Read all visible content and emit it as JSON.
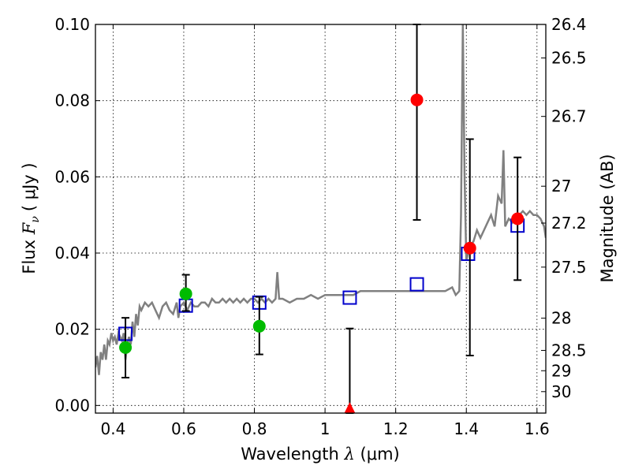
{
  "chart_data": {
    "type": "scatter",
    "xlabel_prefix": "Wavelength",
    "xlabel_symbol": "λ",
    "xlabel_unit": "(μm)",
    "ylabel_prefix": "Flux",
    "ylabel_symbol": "F",
    "ylabel_subscript": "ν",
    "ylabel_unit": "( μJy )",
    "y2label": "Magnitude (AB)",
    "xlim": [
      0.35,
      1.625
    ],
    "ylim": [
      -0.002,
      0.1
    ],
    "grid": true,
    "x_ticks": [
      {
        "value": 0.4,
        "label": "0.4"
      },
      {
        "value": 0.6,
        "label": "0.6"
      },
      {
        "value": 0.8,
        "label": "0.8"
      },
      {
        "value": 1.0,
        "label": "1"
      },
      {
        "value": 1.2,
        "label": "1.2"
      },
      {
        "value": 1.4,
        "label": "1.4"
      },
      {
        "value": 1.6,
        "label": "1.6"
      }
    ],
    "y_ticks": [
      {
        "value": 0.0,
        "label": "0.00"
      },
      {
        "value": 0.02,
        "label": "0.02"
      },
      {
        "value": 0.04,
        "label": "0.04"
      },
      {
        "value": 0.06,
        "label": "0.06"
      },
      {
        "value": 0.08,
        "label": "0.08"
      },
      {
        "value": 0.1,
        "label": "0.10"
      }
    ],
    "mag_ticks": [
      {
        "value": 26.4,
        "label": "26.4"
      },
      {
        "value": 26.5,
        "label": "26.5"
      },
      {
        "value": 26.7,
        "label": "26.7"
      },
      {
        "value": 27.0,
        "label": "27"
      },
      {
        "value": 27.2,
        "label": "27.2"
      },
      {
        "value": 27.5,
        "label": "27.5"
      },
      {
        "value": 28.0,
        "label": "28"
      },
      {
        "value": 28.5,
        "label": "28.5"
      },
      {
        "value": 29.0,
        "label": "29"
      },
      {
        "value": 30.0,
        "label": "30"
      }
    ],
    "series": [
      {
        "role": "template-spectrum",
        "kind": "line",
        "color": "#808080",
        "x": [
          0.35,
          0.355,
          0.36,
          0.365,
          0.37,
          0.375,
          0.38,
          0.385,
          0.39,
          0.395,
          0.4,
          0.405,
          0.41,
          0.415,
          0.42,
          0.425,
          0.43,
          0.435,
          0.44,
          0.445,
          0.45,
          0.455,
          0.46,
          0.465,
          0.47,
          0.475,
          0.48,
          0.49,
          0.5,
          0.51,
          0.52,
          0.53,
          0.54,
          0.55,
          0.56,
          0.57,
          0.58,
          0.585,
          0.59,
          0.6,
          0.61,
          0.62,
          0.63,
          0.64,
          0.65,
          0.66,
          0.67,
          0.68,
          0.69,
          0.7,
          0.71,
          0.72,
          0.73,
          0.74,
          0.75,
          0.76,
          0.77,
          0.78,
          0.79,
          0.8,
          0.81,
          0.82,
          0.83,
          0.84,
          0.85,
          0.86,
          0.865,
          0.87,
          0.875,
          0.88,
          0.9,
          0.92,
          0.94,
          0.96,
          0.98,
          1.0,
          1.02,
          1.04,
          1.06,
          1.08,
          1.1,
          1.12,
          1.14,
          1.16,
          1.18,
          1.2,
          1.22,
          1.24,
          1.26,
          1.28,
          1.3,
          1.32,
          1.34,
          1.36,
          1.37,
          1.38,
          1.385,
          1.39,
          1.395,
          1.4,
          1.405,
          1.41,
          1.42,
          1.43,
          1.44,
          1.45,
          1.46,
          1.47,
          1.48,
          1.49,
          1.5,
          1.505,
          1.51,
          1.52,
          1.53,
          1.54,
          1.55,
          1.56,
          1.57,
          1.58,
          1.59,
          1.6,
          1.61,
          1.62,
          1.625
        ],
        "y": [
          0.01,
          0.013,
          0.008,
          0.014,
          0.012,
          0.016,
          0.012,
          0.017,
          0.016,
          0.019,
          0.017,
          0.018,
          0.016,
          0.019,
          0.018,
          0.017,
          0.019,
          0.012,
          0.016,
          0.018,
          0.016,
          0.022,
          0.018,
          0.024,
          0.021,
          0.026,
          0.025,
          0.027,
          0.026,
          0.027,
          0.025,
          0.023,
          0.026,
          0.027,
          0.025,
          0.024,
          0.027,
          0.023,
          0.026,
          0.027,
          0.025,
          0.027,
          0.026,
          0.026,
          0.027,
          0.027,
          0.026,
          0.028,
          0.027,
          0.027,
          0.028,
          0.027,
          0.028,
          0.027,
          0.028,
          0.027,
          0.028,
          0.027,
          0.028,
          0.028,
          0.027,
          0.028,
          0.027,
          0.028,
          0.027,
          0.028,
          0.035,
          0.028,
          0.028,
          0.028,
          0.027,
          0.028,
          0.028,
          0.029,
          0.028,
          0.029,
          0.029,
          0.029,
          0.029,
          0.029,
          0.03,
          0.03,
          0.03,
          0.03,
          0.03,
          0.03,
          0.03,
          0.03,
          0.03,
          0.03,
          0.03,
          0.03,
          0.03,
          0.031,
          0.029,
          0.03,
          0.05,
          0.1,
          0.06,
          0.038,
          0.04,
          0.042,
          0.043,
          0.046,
          0.044,
          0.046,
          0.048,
          0.05,
          0.047,
          0.055,
          0.053,
          0.067,
          0.047,
          0.049,
          0.048,
          0.05,
          0.05,
          0.051,
          0.05,
          0.051,
          0.05,
          0.05,
          0.049,
          0.047,
          0.044
        ]
      },
      {
        "role": "model-photometry",
        "kind": "square",
        "color": "#0000cc",
        "points": [
          {
            "x": 0.435,
            "y": 0.0188
          },
          {
            "x": 0.606,
            "y": 0.0262
          },
          {
            "x": 0.814,
            "y": 0.027
          },
          {
            "x": 1.07,
            "y": 0.0283
          },
          {
            "x": 1.26,
            "y": 0.0318
          },
          {
            "x": 1.405,
            "y": 0.0398
          },
          {
            "x": 1.545,
            "y": 0.0472
          }
        ]
      },
      {
        "role": "optical-detections",
        "kind": "circle",
        "color": "#00bb00",
        "points": [
          {
            "x": 0.435,
            "y": 0.0152,
            "err_low": 0.0073,
            "err_high": 0.023
          },
          {
            "x": 0.606,
            "y": 0.0293,
            "err_low": 0.0248,
            "err_high": 0.0343
          },
          {
            "x": 0.814,
            "y": 0.0208,
            "err_low": 0.0134,
            "err_high": 0.0285
          }
        ]
      },
      {
        "role": "infrared-detections",
        "kind": "circle",
        "color": "#ff0000",
        "points": [
          {
            "x": 1.26,
            "y": 0.0802,
            "err_low": 0.0487,
            "err_high": 0.1
          },
          {
            "x": 1.41,
            "y": 0.0413,
            "err_low": 0.0131,
            "err_high": 0.0699
          },
          {
            "x": 1.545,
            "y": 0.049,
            "err_low": 0.0329,
            "err_high": 0.0651
          }
        ]
      },
      {
        "role": "infrared-nondetection",
        "kind": "triangle",
        "color": "#ff0000",
        "points": [
          {
            "x": 1.07,
            "y": -0.001,
            "err_low": -0.002,
            "err_high": 0.0202
          }
        ]
      }
    ]
  }
}
